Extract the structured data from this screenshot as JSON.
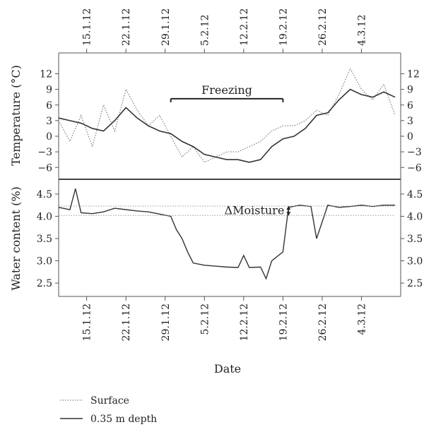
{
  "chart_data": {
    "type": "line",
    "xlabel": "Date",
    "x_tick_labels": [
      "15.1.12",
      "22.1.12",
      "29.1.12",
      "5.2.12",
      "12.2.12",
      "19.2.12",
      "26.2.12",
      "4.3.12"
    ],
    "xlim": [
      "2012-01-10",
      "2012-03-11"
    ],
    "legend": {
      "placement": "bottom-left",
      "entries": [
        {
          "label": "Surface",
          "style": "dotted"
        },
        {
          "label": "0.35 m depth",
          "style": "solid"
        }
      ]
    },
    "panels": [
      {
        "id": "temperature",
        "ylabel": "Temperature (°C)",
        "ylim": [
          -8,
          16
        ],
        "yticks": [
          -6,
          -3,
          0,
          3,
          6,
          9,
          12
        ],
        "annotation": {
          "text": "Freezing",
          "x_start": "2012-01-30",
          "x_end": "2012-02-19",
          "y": 7.2
        },
        "series": [
          {
            "name": "Surface",
            "style": "dotted",
            "x": [
              "2012-01-10",
              "2012-01-12",
              "2012-01-14",
              "2012-01-16",
              "2012-01-18",
              "2012-01-20",
              "2012-01-22",
              "2012-01-24",
              "2012-01-26",
              "2012-01-28",
              "2012-01-30",
              "2012-02-01",
              "2012-02-03",
              "2012-02-05",
              "2012-02-07",
              "2012-02-09",
              "2012-02-11",
              "2012-02-13",
              "2012-02-15",
              "2012-02-17",
              "2012-02-19",
              "2012-02-21",
              "2012-02-23",
              "2012-02-25",
              "2012-02-27",
              "2012-02-29",
              "2012-03-02",
              "2012-03-04",
              "2012-03-06",
              "2012-03-08",
              "2012-03-10"
            ],
            "y": [
              3,
              -1,
              4,
              -2,
              6,
              1,
              9,
              5,
              2,
              4,
              0,
              -4,
              -2,
              -5,
              -4,
              -3,
              -3,
              -2,
              -1,
              1,
              2,
              2,
              3,
              5,
              4,
              8,
              13,
              9,
              7,
              10,
              4
            ]
          },
          {
            "name": "0.35 m depth",
            "style": "solid",
            "x": [
              "2012-01-10",
              "2012-01-12",
              "2012-01-14",
              "2012-01-16",
              "2012-01-18",
              "2012-01-20",
              "2012-01-22",
              "2012-01-24",
              "2012-01-26",
              "2012-01-28",
              "2012-01-30",
              "2012-02-01",
              "2012-02-03",
              "2012-02-05",
              "2012-02-07",
              "2012-02-09",
              "2012-02-11",
              "2012-02-13",
              "2012-02-15",
              "2012-02-17",
              "2012-02-19",
              "2012-02-21",
              "2012-02-23",
              "2012-02-25",
              "2012-02-27",
              "2012-02-29",
              "2012-03-02",
              "2012-03-04",
              "2012-03-06",
              "2012-03-08",
              "2012-03-10"
            ],
            "y": [
              3.5,
              3,
              2.5,
              1.5,
              1,
              3,
              5.5,
              3.5,
              2,
              1,
              0.5,
              -1,
              -2,
              -3.5,
              -4,
              -4.5,
              -4.5,
              -5,
              -4.5,
              -2,
              -0.5,
              0,
              1.5,
              4,
              4.5,
              7,
              9,
              8,
              7.5,
              8.5,
              7.5
            ]
          }
        ]
      },
      {
        "id": "water",
        "ylabel": "Water content (%)",
        "ylim": [
          2.2,
          4.8
        ],
        "yticks": [
          2.5,
          3.0,
          3.5,
          4.0,
          4.5
        ],
        "annotation": {
          "text": "ΔMoisture",
          "x": "2012-02-20",
          "y_low": 4.02,
          "y_high": 4.23
        },
        "series": [
          {
            "name": "0.35 m depth",
            "style": "solid",
            "x": [
              "2012-01-10",
              "2012-01-12",
              "2012-01-13",
              "2012-01-14",
              "2012-01-16",
              "2012-01-18",
              "2012-01-20",
              "2012-01-22",
              "2012-01-24",
              "2012-01-26",
              "2012-01-28",
              "2012-01-30",
              "2012-01-31",
              "2012-02-01",
              "2012-02-02",
              "2012-02-03",
              "2012-02-05",
              "2012-02-07",
              "2012-02-09",
              "2012-02-11",
              "2012-02-12",
              "2012-02-13",
              "2012-02-15",
              "2012-02-16",
              "2012-02-17",
              "2012-02-19",
              "2012-02-20",
              "2012-02-22",
              "2012-02-24",
              "2012-02-25",
              "2012-02-27",
              "2012-02-29",
              "2012-03-02",
              "2012-03-04",
              "2012-03-06",
              "2012-03-08",
              "2012-03-10"
            ],
            "y": [
              4.2,
              4.15,
              4.62,
              4.08,
              4.06,
              4.1,
              4.18,
              4.15,
              4.12,
              4.1,
              4.05,
              4.0,
              3.7,
              3.5,
              3.2,
              2.95,
              2.9,
              2.88,
              2.86,
              2.85,
              3.12,
              2.85,
              2.86,
              2.6,
              3.0,
              3.2,
              4.2,
              4.25,
              4.22,
              3.5,
              4.25,
              4.2,
              4.22,
              4.25,
              4.22,
              4.25,
              4.25
            ]
          },
          {
            "name": "Reference levels",
            "style": "dotted",
            "x": [
              "2012-01-10",
              "2012-03-10"
            ],
            "y_levels": [
              4.02,
              4.23
            ]
          }
        ]
      }
    ]
  }
}
